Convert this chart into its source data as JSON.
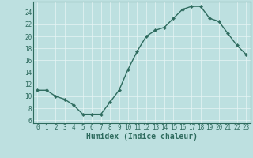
{
  "x": [
    0,
    1,
    2,
    3,
    4,
    5,
    6,
    7,
    8,
    9,
    10,
    11,
    12,
    13,
    14,
    15,
    16,
    17,
    18,
    19,
    20,
    21,
    22,
    23
  ],
  "y": [
    11,
    11,
    10,
    9.5,
    8.5,
    7,
    7,
    7,
    9,
    11,
    14.5,
    17.5,
    20,
    21,
    21.5,
    23,
    24.5,
    25,
    25,
    23,
    22.5,
    20.5,
    18.5,
    17
  ],
  "line_color": "#2e6b5e",
  "marker": "D",
  "marker_size": 2.2,
  "bg_color": "#bde0e0",
  "grid_color": "#e8f5f5",
  "xlabel": "Humidex (Indice chaleur)",
  "xlabel_fontsize": 7,
  "ylim": [
    5.5,
    25.8
  ],
  "xlim": [
    -0.5,
    23.5
  ],
  "yticks": [
    6,
    8,
    10,
    12,
    14,
    16,
    18,
    20,
    22,
    24
  ],
  "xticks": [
    0,
    1,
    2,
    3,
    4,
    5,
    6,
    7,
    8,
    9,
    10,
    11,
    12,
    13,
    14,
    15,
    16,
    17,
    18,
    19,
    20,
    21,
    22,
    23
  ],
  "tick_fontsize": 5.5,
  "line_width": 1.0
}
